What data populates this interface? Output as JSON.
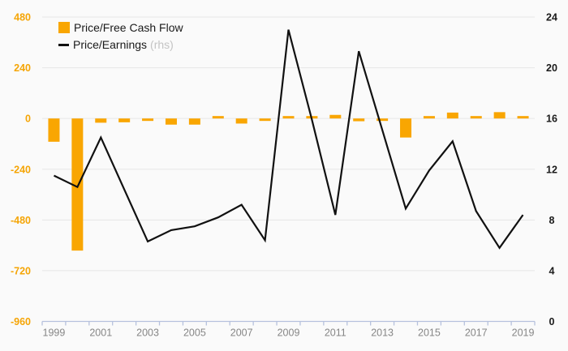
{
  "chart_data": {
    "type": "combo",
    "categories": [
      1999,
      2000,
      2001,
      2002,
      2003,
      2004,
      2005,
      2006,
      2007,
      2008,
      2009,
      2010,
      2011,
      2012,
      2013,
      2014,
      2015,
      2016,
      2017,
      2018,
      2019
    ],
    "series": [
      {
        "name": "Price/Free Cash Flow",
        "type": "bar",
        "axis": "left",
        "color": "#F9A602",
        "values": [
          -110,
          -625,
          -20,
          -18,
          -11,
          -29,
          -29,
          11,
          -24,
          -8,
          3,
          11,
          17,
          -13,
          -8,
          -90,
          10,
          28,
          10,
          30,
          10
        ]
      },
      {
        "name": "Price/Earnings",
        "name_suffix": "(rhs)",
        "type": "line",
        "axis": "right",
        "color": "#111111",
        "values": [
          11.5,
          10.6,
          14.5,
          10.4,
          6.3,
          7.2,
          7.5,
          8.2,
          9.2,
          6.4,
          23.0,
          15.9,
          8.4,
          21.3,
          15.1,
          8.9,
          11.9,
          14.2,
          8.7,
          5.8,
          8.4
        ]
      }
    ],
    "left_axis": {
      "ticks": [
        480,
        240,
        0,
        -240,
        -480,
        -720,
        -960
      ],
      "range": [
        -960,
        480
      ],
      "label_color": "#F5A506"
    },
    "right_axis": {
      "ticks": [
        24,
        20,
        16,
        12,
        8,
        4,
        0
      ],
      "range": [
        0,
        24
      ],
      "label_color": "#1a1a1a"
    },
    "x_axis": {
      "tick_labels": [
        "1999",
        "2001",
        "2003",
        "2005",
        "2007",
        "2009",
        "2011",
        "2013",
        "2015",
        "2017",
        "2019"
      ],
      "label_every": 2,
      "label_color": "#868686",
      "axis_color": "#b6c1dd"
    },
    "grid": true,
    "grid_color": "#e6e6e6",
    "legend_position": "top-left",
    "title": ""
  },
  "legend": {
    "bar_label": "Price/Free Cash Flow",
    "line_label": "Price/Earnings",
    "line_suffix": "(rhs)"
  }
}
